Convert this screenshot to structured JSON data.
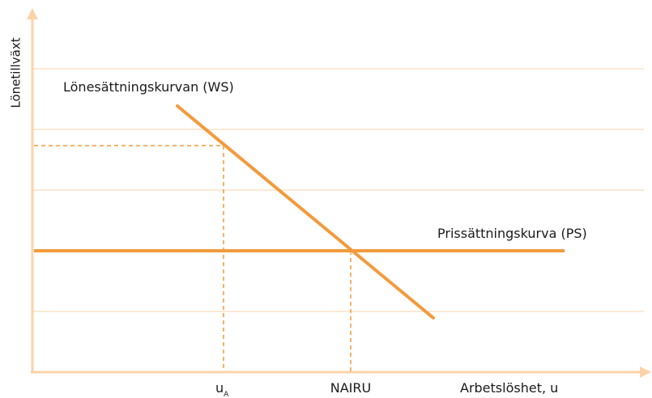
{
  "diagram": {
    "y_axis_label": "Lönetillväxt",
    "x_axis_label": "Arbetslöshet, u",
    "ws_curve_label": "Lönesättningskurvan (WS)",
    "ps_curve_label": "Prissättningskurva (PS)",
    "x_marks": {
      "u_a": {
        "main": "u",
        "sub": "A"
      },
      "nairu": "NAIRU"
    }
  }
}
